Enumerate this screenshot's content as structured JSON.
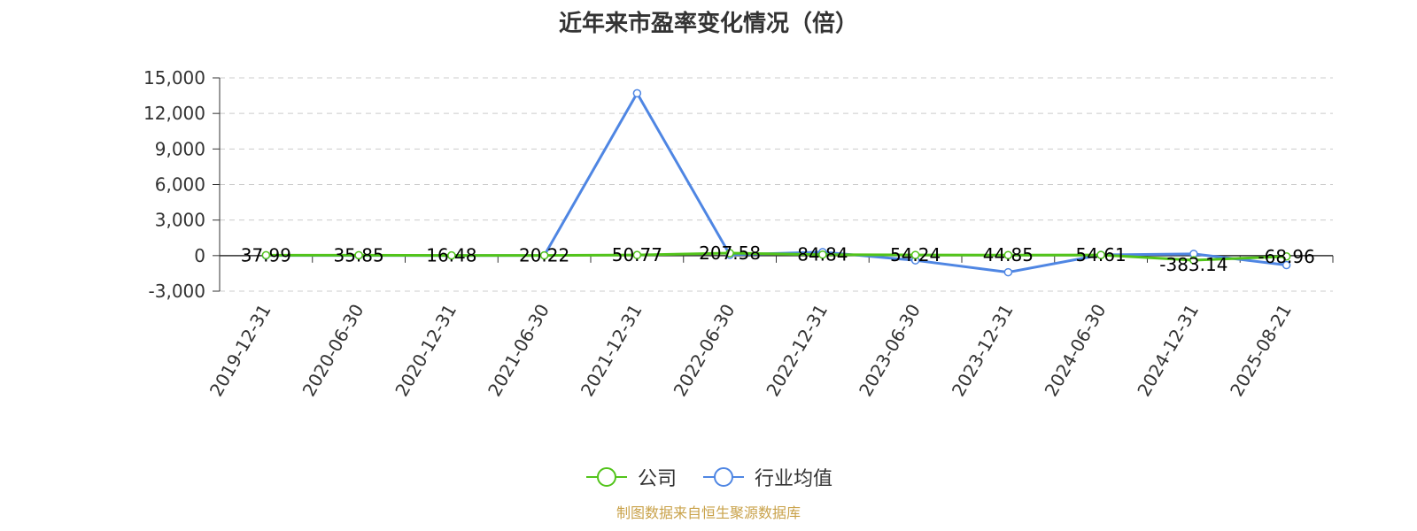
{
  "title": "近年来市盈率变化情况（倍）",
  "legend": {
    "company_label": "公司",
    "industry_label": "行业均值"
  },
  "source_note": "制图数据来自恒生聚源数据库",
  "colors": {
    "company": "#52C41A",
    "industry": "#4F86E3",
    "grid": "#cccccc",
    "axis": "#333333",
    "source": "#c9a24a"
  },
  "chart_data": {
    "type": "line",
    "title": "近年来市盈率变化情况（倍）",
    "categories": [
      "2019-12-31",
      "2020-06-30",
      "2020-12-31",
      "2021-06-30",
      "2021-12-31",
      "2022-06-30",
      "2022-12-31",
      "2023-06-30",
      "2023-12-31",
      "2024-06-30",
      "2024-12-31",
      "2025-08-21"
    ],
    "series": [
      {
        "name": "公司",
        "values": [
          37.99,
          35.85,
          16.48,
          20.22,
          50.77,
          207.58,
          84.84,
          54.24,
          44.85,
          54.61,
          -383.14,
          -68.96
        ],
        "labels": [
          "37.99",
          "35.85",
          "16.48",
          "20.22",
          "50.77",
          "207.58",
          "84.84",
          "54.24",
          "44.85",
          "54.61",
          "-383.14",
          "-68.96"
        ]
      },
      {
        "name": "行业均值",
        "values": [
          20,
          20,
          10,
          20,
          13700,
          70,
          300,
          -400,
          -1400,
          60,
          150,
          -800
        ]
      }
    ],
    "yticks": [
      "-3,000",
      "0",
      "3,000",
      "6,000",
      "9,000",
      "12,000",
      "15,000"
    ],
    "ylim": [
      -3000,
      15000
    ],
    "grid": true,
    "legend_position": "bottom"
  }
}
